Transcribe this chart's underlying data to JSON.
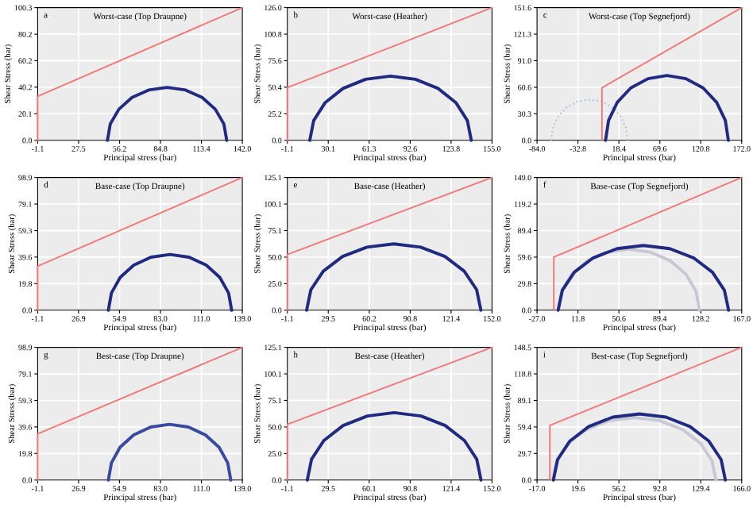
{
  "chart_data": [
    {
      "type": "line",
      "title": "Worst-case (Top Draupne)",
      "annotations": [
        "a"
      ],
      "xlabel": "Principal stress (bar)",
      "ylabel": "Shear Stress (bar)",
      "grid": true,
      "xlim": [
        -1.1,
        142
      ],
      "xticks": [
        -1.1,
        27.5,
        56.2,
        84.8,
        113.4,
        {
          "value": 142,
          "label": "142.0"
        }
      ],
      "ylim": [
        0,
        100.3
      ],
      "yticks": [
        {
          "value": 0,
          "label": "0.0"
        },
        20.1,
        40.2,
        60.2,
        80.2,
        100.3
      ],
      "series": [
        {
          "color": "#f07878",
          "x": [
            -1.1,
            -1.1,
            142
          ],
          "values": [
            0,
            33.3,
            100.3
          ]
        },
        {
          "color": "#1f2a80",
          "x": [
            131.1,
            129.1,
            123.1,
            113.9,
            102.3,
            89.4,
            76.5,
            64.9,
            55.7,
            49.7,
            47.7
          ],
          "values": [
            0,
            12.4,
            23.5,
            32.4,
            38.0,
            40.0,
            38.0,
            32.4,
            23.5,
            12.4,
            0
          ]
        }
      ]
    },
    {
      "type": "line",
      "title": "Worst-case (Heather)",
      "annotations": [
        "b"
      ],
      "xlabel": "Principal stress (bar)",
      "ylabel": "Shear Stress (bar)",
      "grid": true,
      "xlim": [
        -1.1,
        155
      ],
      "xticks": [
        -1.1,
        30.1,
        61.3,
        92.6,
        123.8,
        {
          "value": 155,
          "label": "155.0"
        }
      ],
      "ylim": [
        0,
        126
      ],
      "yticks": [
        {
          "value": 0,
          "label": "0.0"
        },
        25.2,
        50.4,
        75.6,
        100.8,
        {
          "value": 126,
          "label": "126.0"
        }
      ],
      "series": [
        {
          "color": "#f07878",
          "x": [
            -1.1,
            -1.1,
            155
          ],
          "values": [
            0,
            50,
            126
          ]
        },
        {
          "color": "#1f2a80",
          "x": [
            139.2,
            136.2,
            127.4,
            113.8,
            96.6,
            77.6,
            58.6,
            41.4,
            27.8,
            19.0,
            16.0
          ],
          "values": [
            0,
            18.8,
            35.9,
            49.3,
            58.0,
            61.0,
            58.0,
            49.3,
            35.9,
            18.8,
            0
          ]
        }
      ]
    },
    {
      "type": "line",
      "title": "Worst-case (Top Segnefjord)",
      "annotations": [
        "c"
      ],
      "xlabel": "Principal stress (bar)",
      "ylabel": "Shear Stress (bar)",
      "grid": true,
      "xlim": [
        -84,
        172
      ],
      "xticks": [
        {
          "value": -84,
          "label": "-84.0"
        },
        -32.8,
        18.4,
        69.6,
        120.8,
        {
          "value": 172,
          "label": "172.0"
        }
      ],
      "ylim": [
        0,
        151.6
      ],
      "yticks": [
        {
          "value": 0,
          "label": "0.0"
        },
        30.3,
        60.6,
        {
          "value": 91,
          "label": "91.0"
        },
        121.3,
        151.6
      ],
      "series": [
        {
          "color": "#a8c4e0",
          "line_style": "dotted",
          "x": [
            29.5,
            27.1,
            20.3,
            9.7,
            -3.7,
            -18.5,
            -33.3,
            -46.7,
            -57.3,
            -64.1,
            -66.5
          ],
          "values": [
            0,
            14.4,
            27.5,
            37.8,
            44.4,
            46.7,
            44.4,
            37.8,
            27.5,
            14.4,
            0
          ]
        },
        {
          "color": "#f07878",
          "x": [
            -2.8,
            -2.8,
            172
          ],
          "values": [
            0,
            60.0,
            151.6
          ]
        },
        {
          "color": "#1f2a80",
          "x": [
            155.3,
            151.5,
            140.6,
            123.7,
            102.2,
            78.5,
            54.8,
            33.3,
            16.4,
            5.5,
            1.7
          ],
          "values": [
            0,
            22.9,
            43.5,
            59.9,
            70.4,
            74.0,
            70.4,
            59.9,
            43.5,
            22.9,
            0
          ]
        }
      ]
    },
    {
      "type": "line",
      "title": "Base-case (Top Draupne)",
      "annotations": [
        "d"
      ],
      "xlabel": "Principal stress (bar)",
      "ylabel": "Shear Stress (bar)",
      "grid": true,
      "xlim": [
        -1.1,
        139
      ],
      "xticks": [
        -1.1,
        26.9,
        54.9,
        {
          "value": 83,
          "label": "83.0"
        },
        {
          "value": 111,
          "label": "111.0"
        },
        {
          "value": 139,
          "label": "139.0"
        }
      ],
      "ylim": [
        0,
        98.9
      ],
      "yticks": [
        {
          "value": 0,
          "label": "0.0"
        },
        19.8,
        39.6,
        59.3,
        79.1,
        98.9
      ],
      "series": [
        {
          "color": "#f07878",
          "x": [
            -1.1,
            -1.1,
            139
          ],
          "values": [
            0,
            32.8,
            98.9
          ]
        },
        {
          "color": "#1f2a80",
          "x": [
            131.7,
            129.6,
            123.6,
            114.3,
            102.5,
            89.5,
            76.5,
            64.7,
            55.4,
            49.4,
            47.3
          ],
          "values": [
            0,
            12.8,
            24.4,
            33.6,
            39.5,
            41.5,
            39.5,
            33.6,
            24.4,
            12.8,
            0
          ]
        }
      ]
    },
    {
      "type": "line",
      "title": "Base-case (Heather)",
      "annotations": [
        "e"
      ],
      "xlabel": "Principal stress (bar)",
      "ylabel": "Shear Stress (bar)",
      "grid": true,
      "xlim": [
        -1.1,
        152
      ],
      "xticks": [
        -1.1,
        29.5,
        60.2,
        90.8,
        121.4,
        {
          "value": 152,
          "label": "152.0"
        }
      ],
      "ylim": [
        0,
        125.1
      ],
      "yticks": [
        {
          "value": 0,
          "label": "0.0"
        },
        {
          "value": 25,
          "label": "25.0"
        },
        {
          "value": 50,
          "label": "50.0"
        },
        75.1,
        100.1,
        125.1
      ],
      "series": [
        {
          "color": "#f07878",
          "x": [
            -1.1,
            -1.1,
            152
          ],
          "values": [
            0,
            52.5,
            125.1
          ]
        },
        {
          "color": "#1f2a80",
          "x": [
            143.7,
            140.5,
            131.2,
            116.8,
            98.6,
            78.5,
            58.4,
            40.2,
            25.8,
            16.5,
            13.3
          ],
          "values": [
            0,
            19.3,
            36.8,
            50.6,
            59.4,
            62.5,
            59.4,
            50.6,
            36.8,
            19.3,
            0
          ]
        }
      ]
    },
    {
      "type": "line",
      "title": "Base-case (Top Segnefjord)",
      "annotations": [
        "f"
      ],
      "xlabel": "Principal stress (bar)",
      "ylabel": "Shear Stress (bar)",
      "grid": true,
      "xlim": [
        -27,
        167
      ],
      "xticks": [
        {
          "value": -27,
          "label": "-27.0"
        },
        11.8,
        50.6,
        89.4,
        128.2,
        {
          "value": 167,
          "label": "167.0"
        }
      ],
      "ylim": [
        0,
        149
      ],
      "yticks": [
        {
          "value": 0,
          "label": "0.0"
        },
        29.8,
        59.6,
        89.4,
        119.2,
        {
          "value": 149,
          "label": "149.0"
        }
      ],
      "series": [
        {
          "color": "#c8c8d4",
          "x": [
            127.0,
            123.7,
            114.2,
            99.4,
            80.7,
            60.0,
            39.3,
            20.6,
            5.8,
            -3.7,
            -7.0
          ],
          "values": [
            0,
            21.2,
            40.3,
            55.4,
            65.1,
            68.5,
            65.1,
            55.4,
            40.3,
            21.2,
            0
          ]
        },
        {
          "color": "#f07878",
          "x": [
            -11.1,
            -11.1,
            167
          ],
          "values": [
            0,
            59.6,
            149
          ]
        },
        {
          "color": "#1f2a80",
          "x": [
            154.6,
            150.6,
            139.2,
            121.3,
            98.8,
            73.8,
            48.8,
            26.3,
            8.4,
            -3.0,
            -7.0
          ],
          "values": [
            0,
            22.5,
            42.7,
            58.8,
            69.1,
            72.7,
            69.1,
            58.8,
            42.7,
            22.5,
            0
          ]
        }
      ]
    },
    {
      "type": "line",
      "title": "Best-case (Top Draupne)",
      "annotations": [
        "g"
      ],
      "xlabel": "Principal stress (bar)",
      "ylabel": "Shear Stress (bar)",
      "grid": true,
      "xlim": [
        -1.1,
        139
      ],
      "xticks": [
        -1.1,
        26.9,
        54.9,
        {
          "value": 83,
          "label": "83.0"
        },
        {
          "value": 111,
          "label": "111.0"
        },
        {
          "value": 139,
          "label": "139.0"
        }
      ],
      "ylim": [
        0,
        98.9
      ],
      "yticks": [
        {
          "value": 0,
          "label": "0.0"
        },
        19.8,
        39.6,
        59.3,
        79.1,
        98.9
      ],
      "series": [
        {
          "color": "#f07878",
          "x": [
            -1.1,
            -1.1,
            139
          ],
          "values": [
            0,
            34.4,
            98.9
          ]
        },
        {
          "color": "#3a4aa0",
          "x": [
            131.1,
            129.0,
            123.1,
            113.8,
            102.1,
            89.2,
            76.3,
            64.6,
            55.3,
            49.4,
            47.3
          ],
          "values": [
            0,
            12.8,
            24.4,
            33.6,
            39.5,
            41.5,
            39.5,
            33.6,
            24.4,
            12.8,
            0
          ]
        }
      ]
    },
    {
      "type": "line",
      "title": "Best-case (Heather)",
      "annotations": [
        "h"
      ],
      "xlabel": "Principal stress (bar)",
      "ylabel": "Shear Stress (bar)",
      "grid": true,
      "xlim": [
        -1.1,
        152
      ],
      "xticks": [
        -1.1,
        29.5,
        60.1,
        90.8,
        121.4,
        {
          "value": 152,
          "label": "152.0"
        }
      ],
      "ylim": [
        0,
        125.1
      ],
      "yticks": [
        {
          "value": 0,
          "label": "0.0"
        },
        {
          "value": 25,
          "label": "25.0"
        },
        {
          "value": 50,
          "label": "50.0"
        },
        75.1,
        100.1,
        125.1
      ],
      "series": [
        {
          "color": "#f07878",
          "x": [
            -1.1,
            -1.1,
            152
          ],
          "values": [
            0,
            52.5,
            125.1
          ]
        },
        {
          "color": "#1f2a80",
          "x": [
            143.8,
            140.6,
            131.4,
            117.0,
            98.9,
            78.8,
            58.7,
            40.6,
            26.2,
            17.0,
            13.8
          ],
          "values": [
            0,
            19.6,
            37.3,
            51.4,
            60.4,
            63.5,
            60.4,
            51.4,
            37.3,
            19.6,
            0
          ]
        }
      ]
    },
    {
      "type": "line",
      "title": "Best-case (Top Segnefjord)",
      "annotations": [
        "i"
      ],
      "xlabel": "Principal stress (bar)",
      "ylabel": "Shear Stress (bar)",
      "grid": true,
      "xlim": [
        -17,
        166
      ],
      "xticks": [
        {
          "value": -17,
          "label": "-17.0"
        },
        19.6,
        56.2,
        92.8,
        129.4,
        {
          "value": 166,
          "label": "166.0"
        }
      ],
      "ylim": [
        0,
        148.5
      ],
      "yticks": [
        {
          "value": 0,
          "label": "0.0"
        },
        29.7,
        59.4,
        89.1,
        118.8,
        148.5
      ],
      "series": [
        {
          "color": "#c8c8d4",
          "x": [
            143.0,
            139.4,
            129.1,
            112.9,
            92.6,
            70.0,
            47.4,
            26.9,
            10.6,
            0.6,
            -3.0
          ],
          "values": [
            0,
            21.6,
            41.2,
            56.6,
            66.6,
            70.0,
            66.6,
            56.6,
            41.2,
            21.6,
            0
          ]
        },
        {
          "color": "#f07878",
          "x": [
            -5.5,
            -5.5,
            166
          ],
          "values": [
            0,
            61.2,
            148.5
          ]
        },
        {
          "color": "#1f2a80",
          "x": [
            151.4,
            147.6,
            136.7,
            119.7,
            98.3,
            74.5,
            50.7,
            29.3,
            12.3,
            1.4,
            -2.4
          ],
          "values": [
            0,
            22.9,
            43.5,
            59.9,
            70.4,
            74.0,
            70.4,
            59.9,
            43.5,
            22.9,
            0
          ]
        }
      ]
    }
  ]
}
